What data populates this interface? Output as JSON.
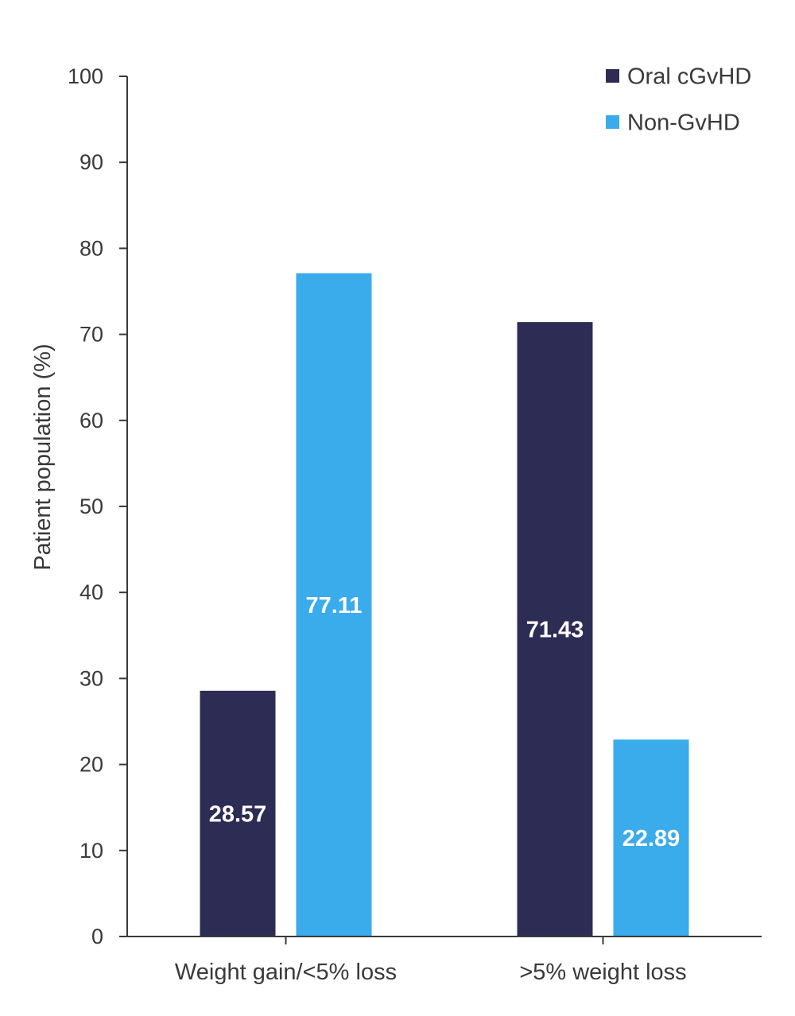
{
  "chart_data": {
    "type": "bar",
    "title": "",
    "xlabel": "",
    "ylabel": "Patient population (%)",
    "ylim": [
      0,
      100
    ],
    "yticks": [
      0,
      10,
      20,
      30,
      40,
      50,
      60,
      70,
      80,
      90,
      100
    ],
    "categories": [
      "Weight gain/<5% loss",
      ">5% weight loss"
    ],
    "series": [
      {
        "name": "Oral cGvHD",
        "color": "#2d2c54",
        "values": [
          28.57,
          71.43
        ],
        "labels": [
          "28.57",
          "71.43"
        ]
      },
      {
        "name": "Non-GvHD",
        "color": "#3aabeb",
        "values": [
          77.11,
          22.89
        ],
        "labels": [
          "77.11",
          "22.89"
        ]
      }
    ],
    "legend_position": "top-right",
    "grid": false
  }
}
